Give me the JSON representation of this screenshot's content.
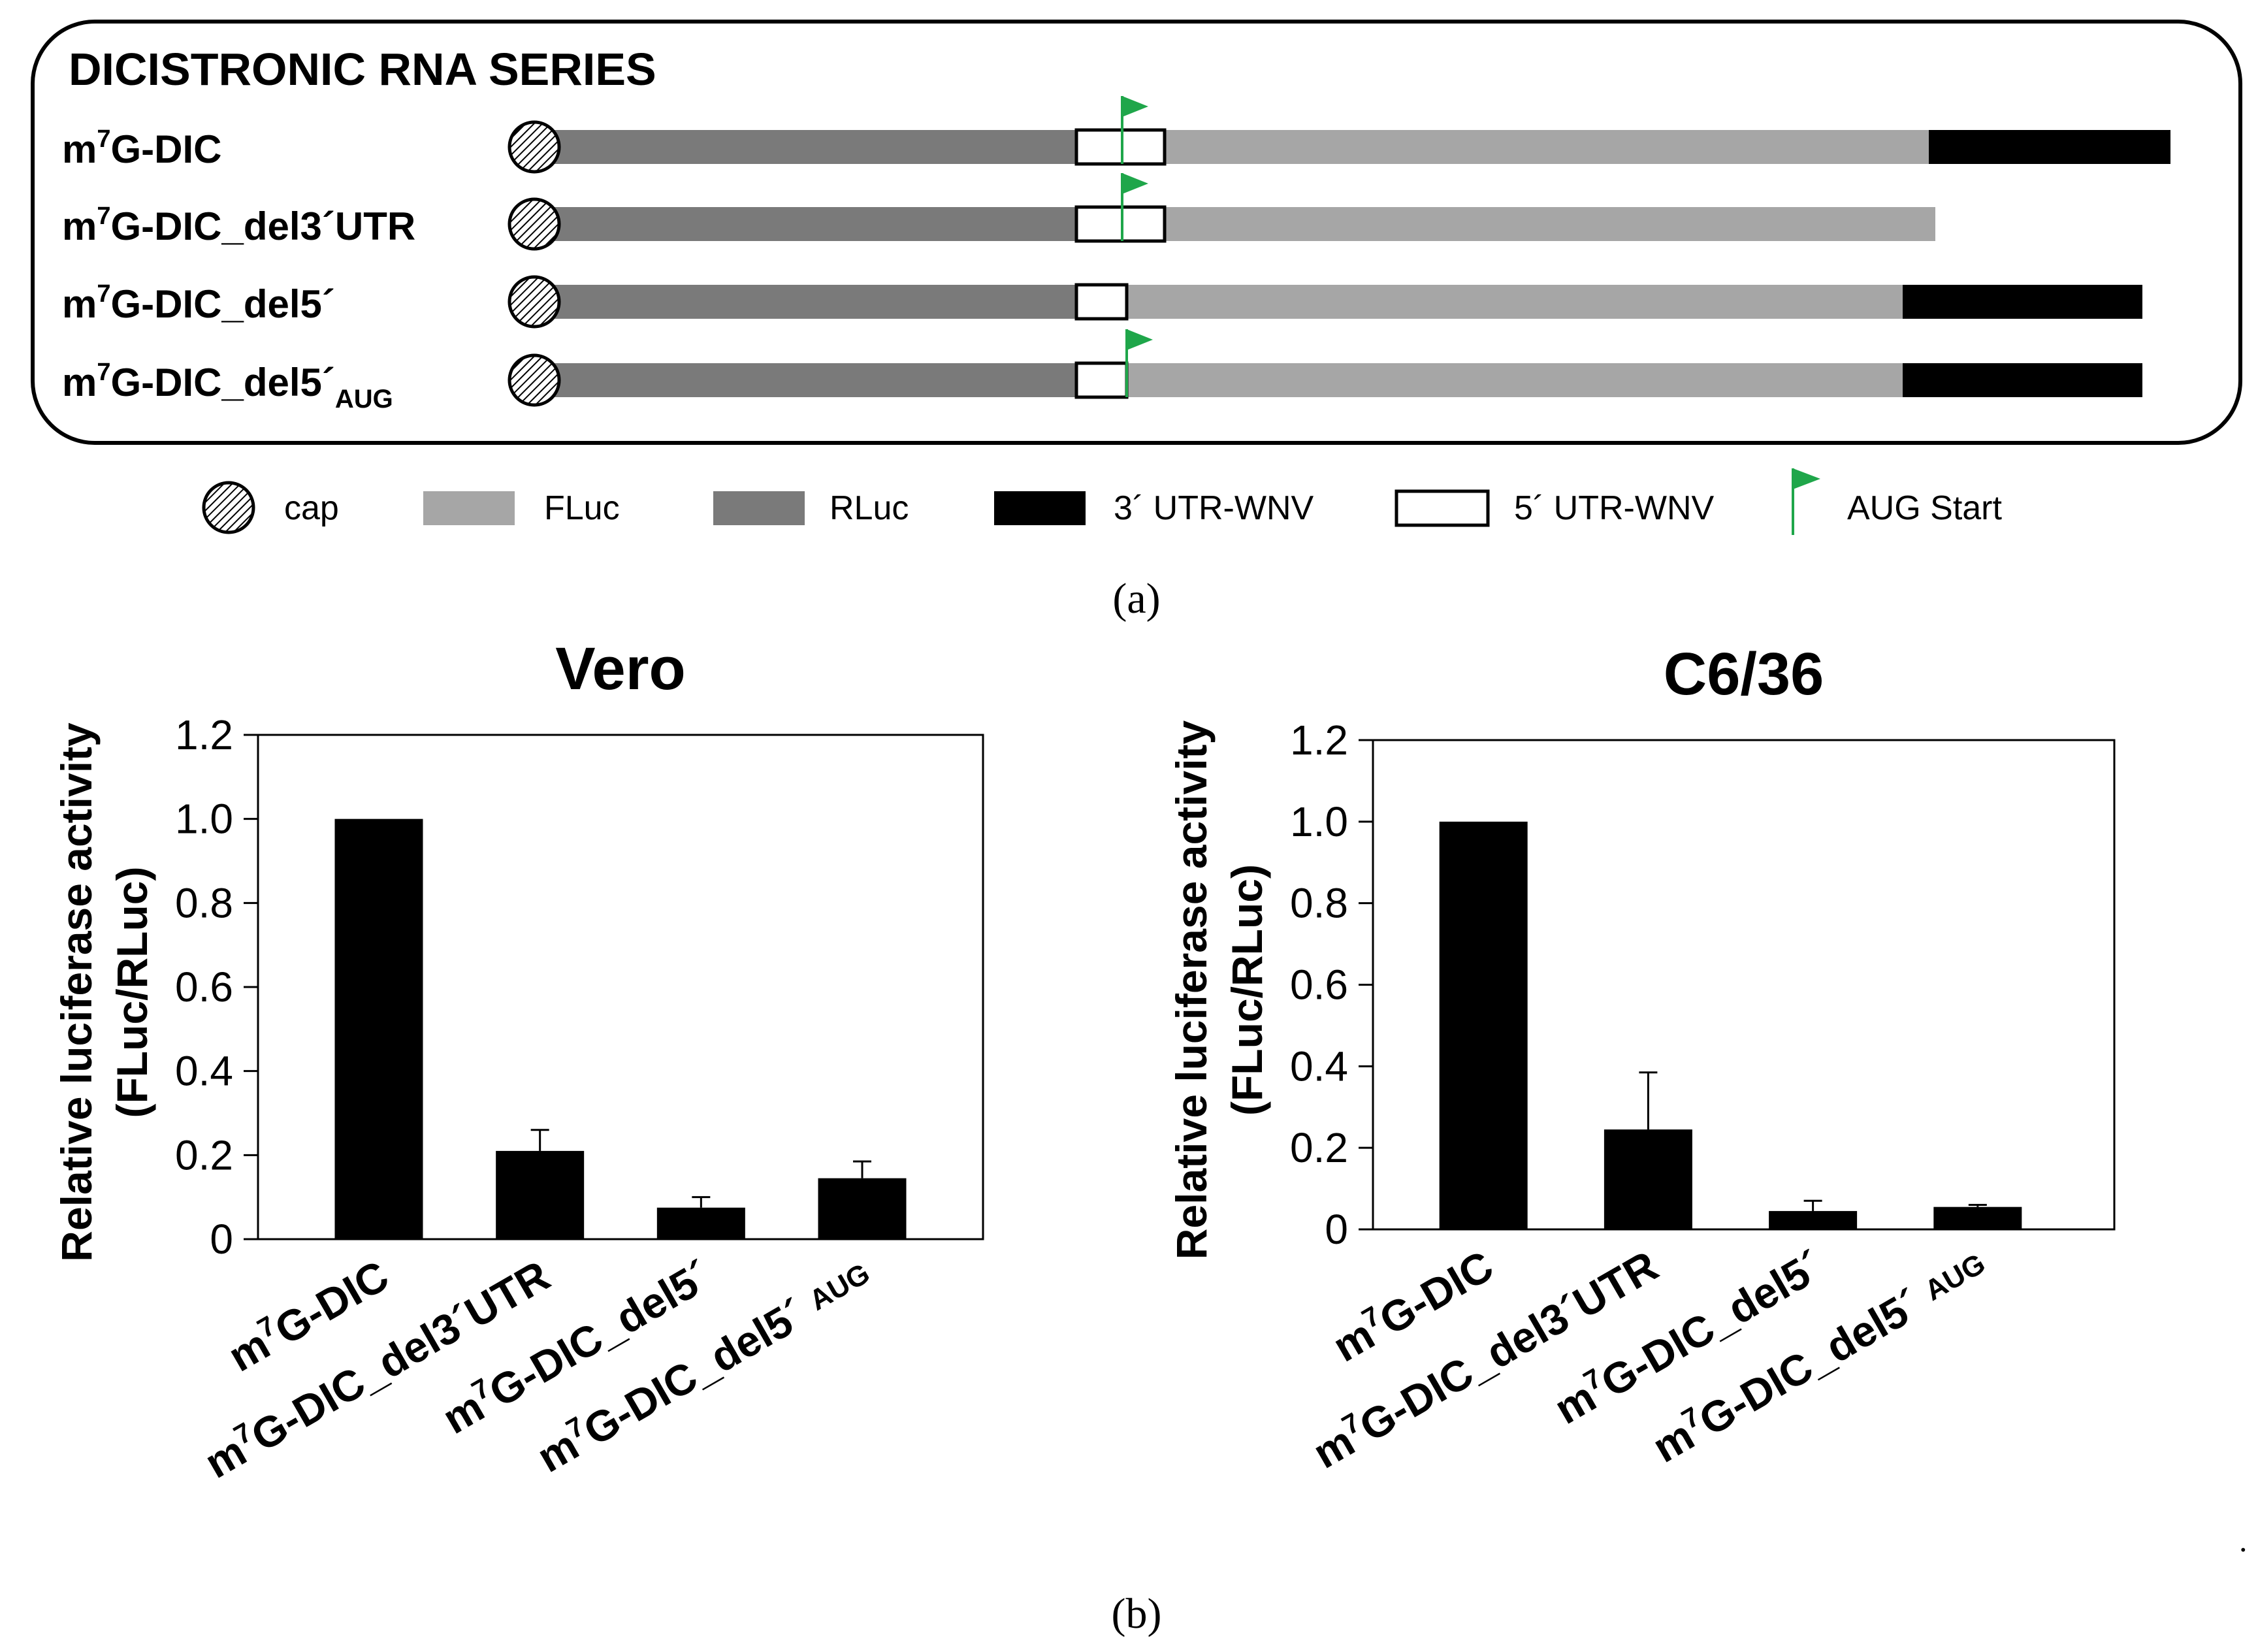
{
  "panel_a": {
    "title": "DICISTRONIC RNA SERIES",
    "constructs": [
      {
        "prefix": "m",
        "sup": "7",
        "name": "G-DIC",
        "sub": "",
        "rluc_nt": [
          0,
          800
        ],
        "utr5_nt": [
          800,
          935
        ],
        "fluc_nt": [
          935,
          2105
        ],
        "utr3_nt": [
          2105,
          2475
        ],
        "aug_nt": 870
      },
      {
        "prefix": "m",
        "sup": "7",
        "name": "G-DIC_del3´UTR",
        "sub": "",
        "rluc_nt": [
          0,
          800
        ],
        "utr5_nt": [
          800,
          935
        ],
        "fluc_nt": [
          935,
          2115
        ],
        "utr3_nt": null,
        "aug_nt": 870
      },
      {
        "prefix": "m",
        "sup": "7",
        "name": "G-DIC_del5´",
        "sub": "",
        "rluc_nt": [
          0,
          800
        ],
        "utr5_nt": [
          800,
          877
        ],
        "fluc_nt": [
          877,
          2065
        ],
        "utr3_nt": [
          2065,
          2432
        ],
        "aug_nt": null
      },
      {
        "prefix": "m",
        "sup": "7",
        "name": "G-DIC_del5´",
        "sub": "AUG",
        "rluc_nt": [
          0,
          800
        ],
        "utr5_nt": [
          800,
          877
        ],
        "fluc_nt": [
          877,
          2065
        ],
        "utr3_nt": [
          2065,
          2432
        ],
        "aug_nt": 877
      }
    ],
    "legend": [
      {
        "key": "cap",
        "label": "cap"
      },
      {
        "key": "fluc",
        "label": "FLuc"
      },
      {
        "key": "rluc",
        "label": "RLuc"
      },
      {
        "key": "utr3",
        "label": "3´ UTR-WNV"
      },
      {
        "key": "utr5",
        "label": "5´ UTR-WNV"
      },
      {
        "key": "aug",
        "label": "AUG Start"
      }
    ],
    "caption": "(a)"
  },
  "colors": {
    "rluc": "#7a7a7a",
    "fluc": "#a6a6a6",
    "utr3": "#000000",
    "aug": "#1fa64a",
    "bar": "#000000"
  },
  "chart_data": [
    {
      "type": "bar",
      "title": "Vero",
      "ylabel_lines": [
        "Relative luciferase activity",
        "(FLuc/RLuc)"
      ],
      "ylim": [
        0,
        1.2
      ],
      "yticks": [
        "0",
        "0.2",
        "0.4",
        "0.6",
        "0.8",
        "1.0",
        "1.2"
      ],
      "categories": [
        {
          "sup": "7",
          "name": "G-DIC",
          "sub": ""
        },
        {
          "sup": "7",
          "name": "G-DIC_del3´UTR",
          "sub": ""
        },
        {
          "sup": "7",
          "name": "G-DIC_del5´",
          "sub": ""
        },
        {
          "sup": "7",
          "name": "G-DIC_del5´",
          "sub": "AUG"
        }
      ],
      "values": [
        1.0,
        0.21,
        0.075,
        0.145
      ],
      "errors": [
        0,
        0.05,
        0.025,
        0.04
      ]
    },
    {
      "type": "bar",
      "title": "C6/36",
      "ylabel_lines": [
        "Relative luciferase activity",
        "(FLuc/RLuc)"
      ],
      "ylim": [
        0,
        1.2
      ],
      "yticks": [
        "0",
        "0.2",
        "0.4",
        "0.6",
        "0.8",
        "1.0",
        "1.2"
      ],
      "categories": [
        {
          "sup": "7",
          "name": "G-DIC",
          "sub": ""
        },
        {
          "sup": "7",
          "name": "G-DIC_del3´UTR",
          "sub": ""
        },
        {
          "sup": "7",
          "name": "G-DIC_del5´",
          "sub": ""
        },
        {
          "sup": "7",
          "name": "G-DIC_del5´",
          "sub": "AUG"
        }
      ],
      "values": [
        1.0,
        0.245,
        0.045,
        0.055
      ],
      "errors": [
        0,
        0.14,
        0.025,
        0.005
      ]
    }
  ],
  "panel_b": {
    "caption": "(b)"
  }
}
